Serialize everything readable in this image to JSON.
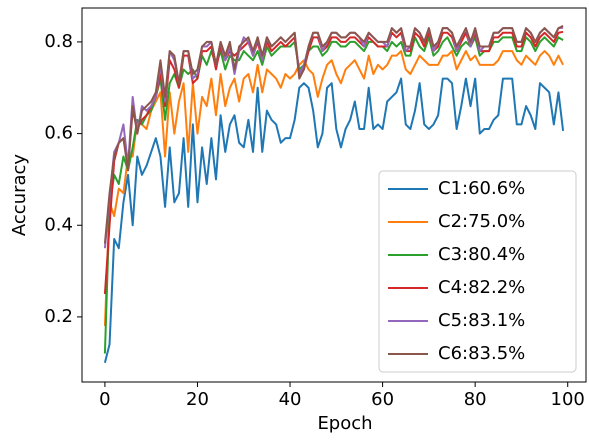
{
  "chart_data": {
    "type": "line",
    "xlabel": "Epoch",
    "ylabel": "Accuracy",
    "x": [
      0,
      1,
      2,
      3,
      4,
      5,
      6,
      7,
      8,
      9,
      10,
      11,
      12,
      13,
      14,
      15,
      16,
      17,
      18,
      19,
      20,
      21,
      22,
      23,
      24,
      25,
      26,
      27,
      28,
      29,
      30,
      31,
      32,
      33,
      34,
      35,
      36,
      37,
      38,
      39,
      40,
      41,
      42,
      43,
      44,
      45,
      46,
      47,
      48,
      49,
      50,
      51,
      52,
      53,
      54,
      55,
      56,
      57,
      58,
      59,
      60,
      61,
      62,
      63,
      64,
      65,
      66,
      67,
      68,
      69,
      70,
      71,
      72,
      73,
      74,
      75,
      76,
      77,
      78,
      79,
      80,
      81,
      82,
      83,
      84,
      85,
      86,
      87,
      88,
      89,
      90,
      91,
      92,
      93,
      94,
      95,
      96,
      97,
      98,
      99
    ],
    "xlim": [
      -4.95,
      103.95
    ],
    "xticks": [
      0,
      20,
      40,
      60,
      80,
      100
    ],
    "ylim": [
      0.058,
      0.874
    ],
    "yticks": [
      0.2,
      0.4,
      0.6,
      0.8
    ],
    "legend": "lower right",
    "series": [
      {
        "name": "C1:60.6%",
        "color": "#1f77b4",
        "values": [
          0.1,
          0.14,
          0.37,
          0.35,
          0.45,
          0.51,
          0.4,
          0.55,
          0.51,
          0.53,
          0.56,
          0.59,
          0.55,
          0.44,
          0.57,
          0.45,
          0.47,
          0.59,
          0.44,
          0.62,
          0.45,
          0.57,
          0.49,
          0.59,
          0.5,
          0.64,
          0.56,
          0.62,
          0.64,
          0.58,
          0.57,
          0.63,
          0.56,
          0.7,
          0.56,
          0.65,
          0.63,
          0.62,
          0.58,
          0.59,
          0.59,
          0.63,
          0.7,
          0.71,
          0.7,
          0.65,
          0.57,
          0.6,
          0.7,
          0.71,
          0.61,
          0.57,
          0.61,
          0.63,
          0.67,
          0.61,
          0.61,
          0.7,
          0.61,
          0.62,
          0.61,
          0.67,
          0.68,
          0.69,
          0.72,
          0.62,
          0.61,
          0.65,
          0.71,
          0.62,
          0.61,
          0.62,
          0.64,
          0.72,
          0.72,
          0.71,
          0.61,
          0.66,
          0.72,
          0.66,
          0.72,
          0.6,
          0.61,
          0.61,
          0.63,
          0.64,
          0.72,
          0.72,
          0.72,
          0.62,
          0.62,
          0.66,
          0.64,
          0.61,
          0.71,
          0.7,
          0.69,
          0.62,
          0.69,
          0.606
        ]
      },
      {
        "name": "C2:75.0%",
        "color": "#ff7f0e",
        "values": [
          0.18,
          0.45,
          0.42,
          0.48,
          0.47,
          0.55,
          0.55,
          0.63,
          0.62,
          0.61,
          0.65,
          0.67,
          0.69,
          0.55,
          0.69,
          0.6,
          0.67,
          0.71,
          0.56,
          0.71,
          0.6,
          0.68,
          0.66,
          0.72,
          0.64,
          0.73,
          0.66,
          0.7,
          0.72,
          0.67,
          0.72,
          0.73,
          0.69,
          0.75,
          0.69,
          0.74,
          0.73,
          0.72,
          0.7,
          0.73,
          0.72,
          0.73,
          0.75,
          0.76,
          0.74,
          0.73,
          0.68,
          0.72,
          0.75,
          0.76,
          0.73,
          0.71,
          0.74,
          0.75,
          0.76,
          0.74,
          0.72,
          0.77,
          0.73,
          0.75,
          0.74,
          0.75,
          0.77,
          0.77,
          0.78,
          0.74,
          0.73,
          0.75,
          0.77,
          0.76,
          0.75,
          0.75,
          0.75,
          0.77,
          0.77,
          0.78,
          0.74,
          0.76,
          0.78,
          0.76,
          0.77,
          0.75,
          0.75,
          0.75,
          0.75,
          0.76,
          0.78,
          0.78,
          0.78,
          0.76,
          0.75,
          0.77,
          0.76,
          0.75,
          0.77,
          0.78,
          0.77,
          0.75,
          0.77,
          0.75
        ]
      },
      {
        "name": "C3:80.4%",
        "color": "#2ca02c",
        "values": [
          0.12,
          0.44,
          0.51,
          0.49,
          0.55,
          0.52,
          0.57,
          0.63,
          0.62,
          0.64,
          0.65,
          0.68,
          0.72,
          0.63,
          0.71,
          0.73,
          0.7,
          0.74,
          0.73,
          0.74,
          0.72,
          0.77,
          0.75,
          0.78,
          0.75,
          0.78,
          0.74,
          0.77,
          0.76,
          0.76,
          0.78,
          0.77,
          0.76,
          0.78,
          0.75,
          0.79,
          0.77,
          0.78,
          0.79,
          0.79,
          0.79,
          0.8,
          0.74,
          0.75,
          0.78,
          0.79,
          0.79,
          0.77,
          0.78,
          0.8,
          0.8,
          0.79,
          0.79,
          0.8,
          0.8,
          0.79,
          0.78,
          0.8,
          0.8,
          0.79,
          0.79,
          0.78,
          0.8,
          0.79,
          0.8,
          0.77,
          0.77,
          0.81,
          0.79,
          0.78,
          0.81,
          0.77,
          0.78,
          0.8,
          0.81,
          0.79,
          0.77,
          0.79,
          0.8,
          0.79,
          0.81,
          0.77,
          0.78,
          0.78,
          0.8,
          0.8,
          0.81,
          0.81,
          0.81,
          0.78,
          0.78,
          0.81,
          0.8,
          0.78,
          0.8,
          0.81,
          0.8,
          0.79,
          0.81,
          0.804
        ]
      },
      {
        "name": "C4:82.2%",
        "color": "#d62728",
        "values": [
          0.25,
          0.4,
          0.54,
          0.58,
          0.59,
          0.53,
          0.65,
          0.61,
          0.63,
          0.64,
          0.66,
          0.68,
          0.73,
          0.66,
          0.76,
          0.74,
          0.7,
          0.77,
          0.77,
          0.71,
          0.72,
          0.78,
          0.78,
          0.79,
          0.74,
          0.79,
          0.76,
          0.78,
          0.77,
          0.78,
          0.79,
          0.8,
          0.77,
          0.8,
          0.76,
          0.8,
          0.78,
          0.79,
          0.8,
          0.79,
          0.8,
          0.81,
          0.73,
          0.74,
          0.78,
          0.81,
          0.81,
          0.78,
          0.79,
          0.81,
          0.81,
          0.8,
          0.8,
          0.81,
          0.81,
          0.8,
          0.79,
          0.81,
          0.8,
          0.79,
          0.79,
          0.79,
          0.82,
          0.81,
          0.82,
          0.78,
          0.78,
          0.82,
          0.81,
          0.79,
          0.82,
          0.78,
          0.79,
          0.82,
          0.82,
          0.81,
          0.78,
          0.8,
          0.82,
          0.79,
          0.82,
          0.78,
          0.78,
          0.78,
          0.81,
          0.81,
          0.82,
          0.82,
          0.82,
          0.79,
          0.79,
          0.82,
          0.81,
          0.79,
          0.81,
          0.82,
          0.81,
          0.8,
          0.82,
          0.822
        ]
      },
      {
        "name": "C5:83.1%",
        "color": "#9467bd",
        "values": [
          0.35,
          0.46,
          0.56,
          0.58,
          0.62,
          0.53,
          0.68,
          0.6,
          0.66,
          0.65,
          0.66,
          0.68,
          0.75,
          0.67,
          0.78,
          0.76,
          0.71,
          0.78,
          0.78,
          0.72,
          0.73,
          0.79,
          0.79,
          0.8,
          0.75,
          0.8,
          0.76,
          0.79,
          0.73,
          0.78,
          0.81,
          0.8,
          0.77,
          0.81,
          0.76,
          0.81,
          0.79,
          0.8,
          0.81,
          0.8,
          0.81,
          0.82,
          0.73,
          0.75,
          0.79,
          0.82,
          0.82,
          0.78,
          0.8,
          0.82,
          0.82,
          0.81,
          0.81,
          0.82,
          0.82,
          0.81,
          0.79,
          0.82,
          0.81,
          0.8,
          0.8,
          0.79,
          0.83,
          0.82,
          0.83,
          0.78,
          0.79,
          0.83,
          0.82,
          0.8,
          0.83,
          0.78,
          0.8,
          0.83,
          0.83,
          0.82,
          0.78,
          0.81,
          0.83,
          0.79,
          0.83,
          0.78,
          0.79,
          0.79,
          0.82,
          0.82,
          0.83,
          0.83,
          0.83,
          0.8,
          0.8,
          0.83,
          0.82,
          0.8,
          0.82,
          0.83,
          0.82,
          0.81,
          0.83,
          0.831
        ]
      },
      {
        "name": "C6:83.5%",
        "color": "#8c564b",
        "values": [
          0.36,
          0.47,
          0.55,
          0.58,
          0.59,
          0.52,
          0.66,
          0.6,
          0.65,
          0.66,
          0.67,
          0.69,
          0.76,
          0.68,
          0.78,
          0.77,
          0.71,
          0.78,
          0.78,
          0.73,
          0.74,
          0.79,
          0.8,
          0.8,
          0.75,
          0.8,
          0.77,
          0.8,
          0.74,
          0.79,
          0.8,
          0.81,
          0.78,
          0.81,
          0.77,
          0.81,
          0.79,
          0.8,
          0.81,
          0.8,
          0.81,
          0.82,
          0.72,
          0.74,
          0.79,
          0.82,
          0.82,
          0.79,
          0.8,
          0.82,
          0.82,
          0.81,
          0.81,
          0.82,
          0.82,
          0.81,
          0.8,
          0.82,
          0.81,
          0.8,
          0.8,
          0.8,
          0.83,
          0.82,
          0.83,
          0.79,
          0.79,
          0.83,
          0.82,
          0.8,
          0.83,
          0.79,
          0.8,
          0.83,
          0.83,
          0.82,
          0.79,
          0.81,
          0.83,
          0.8,
          0.83,
          0.79,
          0.79,
          0.79,
          0.82,
          0.82,
          0.83,
          0.83,
          0.83,
          0.8,
          0.8,
          0.83,
          0.82,
          0.8,
          0.82,
          0.83,
          0.82,
          0.81,
          0.83,
          0.835
        ]
      }
    ]
  }
}
